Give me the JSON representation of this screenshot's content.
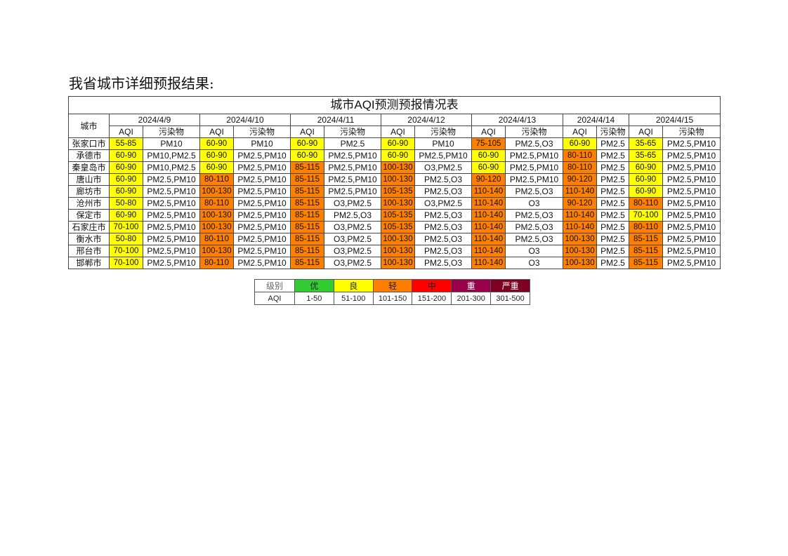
{
  "heading": "我省城市详细预报结果:",
  "table": {
    "title": "城市AQI预测预报情况表",
    "city_header": "城市",
    "aqi_header": "AQI",
    "pollutant_header": "污染物",
    "dates": [
      "2024/4/9",
      "2024/4/10",
      "2024/4/11",
      "2024/4/12",
      "2024/4/13",
      "2024/4/14",
      "2024/4/15"
    ],
    "rows": [
      {
        "city": "张家口市",
        "cells": [
          [
            "55-85",
            "PM10"
          ],
          [
            "60-90",
            "PM10"
          ],
          [
            "60-90",
            "PM2.5"
          ],
          [
            "60-90",
            "PM10"
          ],
          [
            "75-105",
            "PM2.5,O3"
          ],
          [
            "60-90",
            "PM2.5"
          ],
          [
            "35-65",
            "PM2.5,PM10"
          ]
        ]
      },
      {
        "city": "承德市",
        "cells": [
          [
            "60-90",
            "PM10,PM2.5"
          ],
          [
            "60-90",
            "PM2.5,PM10"
          ],
          [
            "60-90",
            "PM2.5,PM10"
          ],
          [
            "60-90",
            "PM2.5,PM10"
          ],
          [
            "60-90",
            "PM2.5,PM10"
          ],
          [
            "80-110",
            "PM2.5"
          ],
          [
            "35-65",
            "PM2.5,PM10"
          ]
        ]
      },
      {
        "city": "秦皇岛市",
        "cells": [
          [
            "60-90",
            "PM10,PM2.5"
          ],
          [
            "60-90",
            "PM2.5,PM10"
          ],
          [
            "85-115",
            "PM2.5,PM10"
          ],
          [
            "100-130",
            "O3,PM2.5"
          ],
          [
            "60-90",
            "PM2.5,PM10"
          ],
          [
            "80-110",
            "PM2.5"
          ],
          [
            "60-90",
            "PM2.5,PM10"
          ]
        ]
      },
      {
        "city": "唐山市",
        "cells": [
          [
            "60-90",
            "PM2.5,PM10"
          ],
          [
            "80-110",
            "PM2.5,PM10"
          ],
          [
            "85-115",
            "PM2.5,PM10"
          ],
          [
            "100-130",
            "PM2.5,O3"
          ],
          [
            "90-120",
            "PM2.5,PM10"
          ],
          [
            "90-120",
            "PM2.5"
          ],
          [
            "60-90",
            "PM2.5,PM10"
          ]
        ]
      },
      {
        "city": "廊坊市",
        "cells": [
          [
            "60-90",
            "PM2.5,PM10"
          ],
          [
            "100-130",
            "PM2.5,PM10"
          ],
          [
            "85-115",
            "PM2.5,PM10"
          ],
          [
            "105-135",
            "PM2.5,O3"
          ],
          [
            "110-140",
            "PM2.5,O3"
          ],
          [
            "110-140",
            "PM2.5"
          ],
          [
            "60-90",
            "PM2.5,PM10"
          ]
        ]
      },
      {
        "city": "沧州市",
        "cells": [
          [
            "50-80",
            "PM2.5,PM10"
          ],
          [
            "80-110",
            "PM2.5,PM10"
          ],
          [
            "85-115",
            "O3,PM2.5"
          ],
          [
            "100-130",
            "O3,PM2.5"
          ],
          [
            "110-140",
            "O3"
          ],
          [
            "90-120",
            "PM2.5"
          ],
          [
            "80-110",
            "PM2.5,PM10"
          ]
        ]
      },
      {
        "city": "保定市",
        "cells": [
          [
            "60-90",
            "PM2.5,PM10"
          ],
          [
            "100-130",
            "PM2.5,PM10"
          ],
          [
            "85-115",
            "PM2.5,O3"
          ],
          [
            "105-135",
            "PM2.5,O3"
          ],
          [
            "110-140",
            "PM2.5,O3"
          ],
          [
            "110-140",
            "PM2.5"
          ],
          [
            "70-100",
            "PM2.5,PM10"
          ]
        ]
      },
      {
        "city": "石家庄市",
        "cells": [
          [
            "70-100",
            "PM2.5,PM10"
          ],
          [
            "100-130",
            "PM2.5,PM10"
          ],
          [
            "85-115",
            "O3,PM2.5"
          ],
          [
            "105-135",
            "PM2.5,O3"
          ],
          [
            "110-140",
            "PM2.5,O3"
          ],
          [
            "110-140",
            "PM2.5"
          ],
          [
            "80-110",
            "PM2.5,PM10"
          ]
        ]
      },
      {
        "city": "衡水市",
        "cells": [
          [
            "50-80",
            "PM2.5,PM10"
          ],
          [
            "80-110",
            "PM2.5,PM10"
          ],
          [
            "85-115",
            "O3,PM2.5"
          ],
          [
            "100-130",
            "PM2.5,O3"
          ],
          [
            "110-140",
            "PM2.5,O3"
          ],
          [
            "100-130",
            "PM2.5"
          ],
          [
            "85-115",
            "PM2.5,PM10"
          ]
        ]
      },
      {
        "city": "邢台市",
        "cells": [
          [
            "70-100",
            "PM2.5,PM10"
          ],
          [
            "100-130",
            "PM2.5,PM10"
          ],
          [
            "85-115",
            "O3,PM2.5"
          ],
          [
            "100-130",
            "PM2.5,O3"
          ],
          [
            "110-140",
            "O3"
          ],
          [
            "100-130",
            "PM2.5"
          ],
          [
            "85-115",
            "PM2.5,PM10"
          ]
        ]
      },
      {
        "city": "邯郸市",
        "cells": [
          [
            "70-100",
            "PM2.5,PM10"
          ],
          [
            "80-110",
            "PM2.5,PM10"
          ],
          [
            "85-115",
            "O3,PM2.5"
          ],
          [
            "100-130",
            "PM2.5,O3"
          ],
          [
            "110-140",
            "O3"
          ],
          [
            "100-130",
            "PM2.5"
          ],
          [
            "85-115",
            "PM2.5,PM10"
          ]
        ]
      }
    ]
  },
  "legend": {
    "level_label": "级别",
    "aqi_label": "AQI",
    "levels": [
      {
        "name": "优",
        "range": "1-50",
        "color": "#33cc33",
        "text_color": "#222"
      },
      {
        "name": "良",
        "range": "51-100",
        "color": "#ffff00",
        "text_color": "#222"
      },
      {
        "name": "轻",
        "range": "101-150",
        "color": "#ff7e00",
        "text_color": "#222"
      },
      {
        "name": "中",
        "range": "151-200",
        "color": "#ff0000",
        "text_color": "#222"
      },
      {
        "name": "重",
        "range": "201-300",
        "color": "#99004c",
        "text_color": "#fff"
      },
      {
        "name": "严重",
        "range": "301-500",
        "color": "#7e0023",
        "text_color": "#fff"
      }
    ]
  },
  "colors": {
    "good": "#ffff00",
    "light": "#ff8000",
    "header_bg": "#ffffff"
  }
}
